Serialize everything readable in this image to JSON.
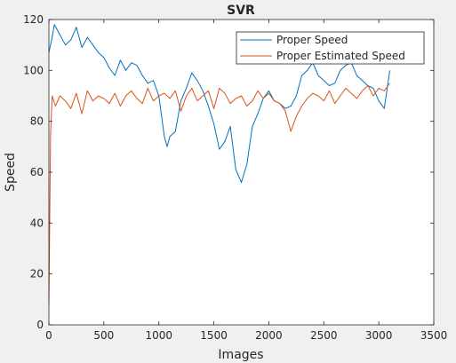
{
  "window": {
    "background": "#f0f0f0"
  },
  "chart_data": {
    "type": "line",
    "title": "SVR",
    "xlabel": "Images",
    "ylabel": "Speed",
    "xlim": [
      0,
      3500
    ],
    "ylim": [
      0,
      120
    ],
    "xticks": [
      0,
      500,
      1000,
      1500,
      2000,
      2500,
      3000,
      3500
    ],
    "yticks": [
      0,
      20,
      40,
      60,
      80,
      100,
      120
    ],
    "xtick_labels": [
      "0",
      "500",
      "1000",
      "1500",
      "2000",
      "2500",
      "3000",
      "3500"
    ],
    "ytick_labels": [
      "0",
      "20",
      "40",
      "60",
      "80",
      "100",
      "120"
    ],
    "grid": false,
    "legend_position": "top-right",
    "series": [
      {
        "name": "Proper Speed",
        "color": "#0072bd",
        "x": [
          0,
          25,
          50,
          75,
          100,
          150,
          200,
          250,
          300,
          350,
          400,
          450,
          500,
          550,
          600,
          650,
          700,
          750,
          800,
          850,
          900,
          950,
          1000,
          1050,
          1075,
          1100,
          1150,
          1200,
          1250,
          1300,
          1350,
          1400,
          1450,
          1500,
          1550,
          1600,
          1650,
          1700,
          1750,
          1800,
          1850,
          1900,
          1950,
          2000,
          2050,
          2100,
          2150,
          2200,
          2250,
          2300,
          2350,
          2400,
          2450,
          2500,
          2550,
          2600,
          2650,
          2700,
          2750,
          2800,
          2850,
          2900,
          2950,
          3000,
          3050,
          3100
        ],
        "y": [
          107,
          112,
          118,
          116,
          114,
          110,
          112,
          117,
          109,
          113,
          110,
          107,
          105,
          101,
          98,
          104,
          100,
          103,
          102,
          98,
          95,
          96,
          90,
          74,
          70,
          74,
          76,
          88,
          93,
          99,
          96,
          92,
          86,
          79,
          69,
          72,
          78,
          61,
          56,
          63,
          78,
          83,
          89,
          92,
          88,
          87,
          85,
          86,
          90,
          98,
          100,
          103,
          98,
          96,
          94,
          95,
          100,
          102,
          103,
          98,
          96,
          94,
          93,
          88,
          85,
          100
        ]
      },
      {
        "name": "Proper Estimated Speed",
        "color": "#d95319",
        "x": [
          0,
          15,
          30,
          60,
          100,
          150,
          200,
          250,
          300,
          350,
          400,
          450,
          500,
          550,
          600,
          650,
          700,
          750,
          800,
          850,
          900,
          950,
          1000,
          1050,
          1100,
          1150,
          1200,
          1250,
          1300,
          1350,
          1400,
          1450,
          1500,
          1550,
          1600,
          1650,
          1700,
          1750,
          1800,
          1850,
          1900,
          1950,
          2000,
          2050,
          2100,
          2150,
          2200,
          2250,
          2300,
          2350,
          2400,
          2450,
          2500,
          2550,
          2600,
          2650,
          2700,
          2750,
          2800,
          2850,
          2900,
          2950,
          3000,
          3050,
          3100
        ],
        "y": [
          8,
          75,
          90,
          86,
          90,
          88,
          85,
          91,
          83,
          92,
          88,
          90,
          89,
          87,
          91,
          86,
          90,
          92,
          89,
          87,
          93,
          88,
          90,
          91,
          89,
          92,
          84,
          90,
          93,
          88,
          90,
          92,
          85,
          93,
          91,
          87,
          89,
          90,
          86,
          88,
          92,
          89,
          91,
          88,
          87,
          84,
          76,
          82,
          86,
          89,
          91,
          90,
          88,
          92,
          87,
          90,
          93,
          91,
          89,
          92,
          94,
          90,
          93,
          92,
          95
        ]
      }
    ]
  }
}
